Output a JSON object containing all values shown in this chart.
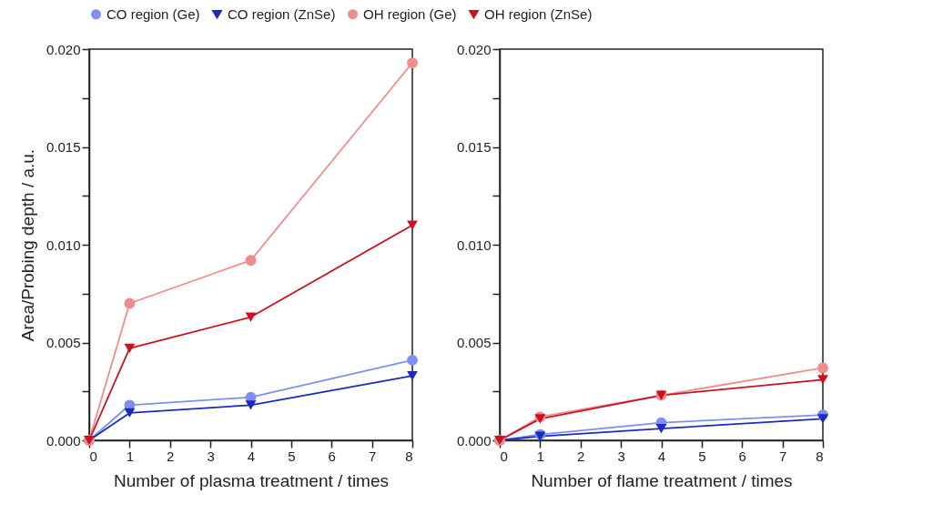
{
  "chart_data": [
    {
      "type": "line",
      "xlabel": "Number of plasma treatment  /  times",
      "ylabel": "Area/Probing depth  / a.u.",
      "legend": "top",
      "grid": false,
      "x": [
        0,
        1,
        4,
        8
      ],
      "xlim": [
        0,
        8
      ],
      "xticks": [
        0,
        1,
        2,
        3,
        4,
        5,
        6,
        7,
        8
      ],
      "ylim": [
        0,
        0.02
      ],
      "yticks": [
        {
          "value": 0,
          "label": "0.000"
        },
        {
          "value": 0.0025,
          "label": null
        },
        {
          "value": 0.005,
          "label": "0.005"
        },
        {
          "value": 0.0075,
          "label": null
        },
        {
          "value": 0.01,
          "label": "0.010"
        },
        {
          "value": 0.0125,
          "label": null
        },
        {
          "value": 0.015,
          "label": "0.015"
        },
        {
          "value": 0.0175,
          "label": null
        },
        {
          "value": 0.02,
          "label": "0.020"
        }
      ],
      "series": [
        {
          "name": "CO region (Ge)",
          "color": "#7f8ff0",
          "marker": "circle",
          "values": [
            0,
            0.0018,
            0.0022,
            0.0041
          ]
        },
        {
          "name": "CO region (ZnSe)",
          "color": "#1a2bc0",
          "marker": "triangle",
          "values": [
            0,
            0.0014,
            0.0018,
            0.0033
          ]
        },
        {
          "name": "OH region (Ge)",
          "color": "#f08c8c",
          "marker": "circle",
          "values": [
            0,
            0.007,
            0.0092,
            0.0193
          ]
        },
        {
          "name": "OH region (ZnSe)",
          "color": "#cc1020",
          "marker": "triangle",
          "values": [
            0,
            0.0047,
            0.0063,
            0.011
          ]
        }
      ]
    },
    {
      "type": "line",
      "xlabel": "Number of flame treatment  /  times",
      "grid": false,
      "x": [
        0,
        1,
        4,
        8
      ],
      "xlim": [
        0,
        8
      ],
      "xticks": [
        0,
        1,
        2,
        3,
        4,
        5,
        6,
        7,
        8
      ],
      "ylim": [
        0,
        0.02
      ],
      "yticks": [
        {
          "value": 0,
          "label": "0.000"
        },
        {
          "value": 0.0025,
          "label": null
        },
        {
          "value": 0.005,
          "label": "0.005"
        },
        {
          "value": 0.0075,
          "label": null
        },
        {
          "value": 0.01,
          "label": "0.010"
        },
        {
          "value": 0.0125,
          "label": null
        },
        {
          "value": 0.015,
          "label": "0.015"
        },
        {
          "value": 0.0175,
          "label": null
        },
        {
          "value": 0.02,
          "label": "0.020"
        }
      ],
      "series": [
        {
          "name": "CO region (Ge)",
          "color": "#7f8ff0",
          "marker": "circle",
          "values": [
            0,
            0.0003,
            0.0009,
            0.0013
          ]
        },
        {
          "name": "CO region (ZnSe)",
          "color": "#1a2bc0",
          "marker": "triangle",
          "values": [
            0,
            0.0002,
            0.0006,
            0.0011
          ]
        },
        {
          "name": "OH region (Ge)",
          "color": "#f08c8c",
          "marker": "circle",
          "values": [
            0,
            0.0012,
            0.0023,
            0.0037
          ]
        },
        {
          "name": "OH region (ZnSe)",
          "color": "#cc1020",
          "marker": "triangle",
          "values": [
            0,
            0.0011,
            0.0023,
            0.0031
          ]
        }
      ]
    }
  ]
}
